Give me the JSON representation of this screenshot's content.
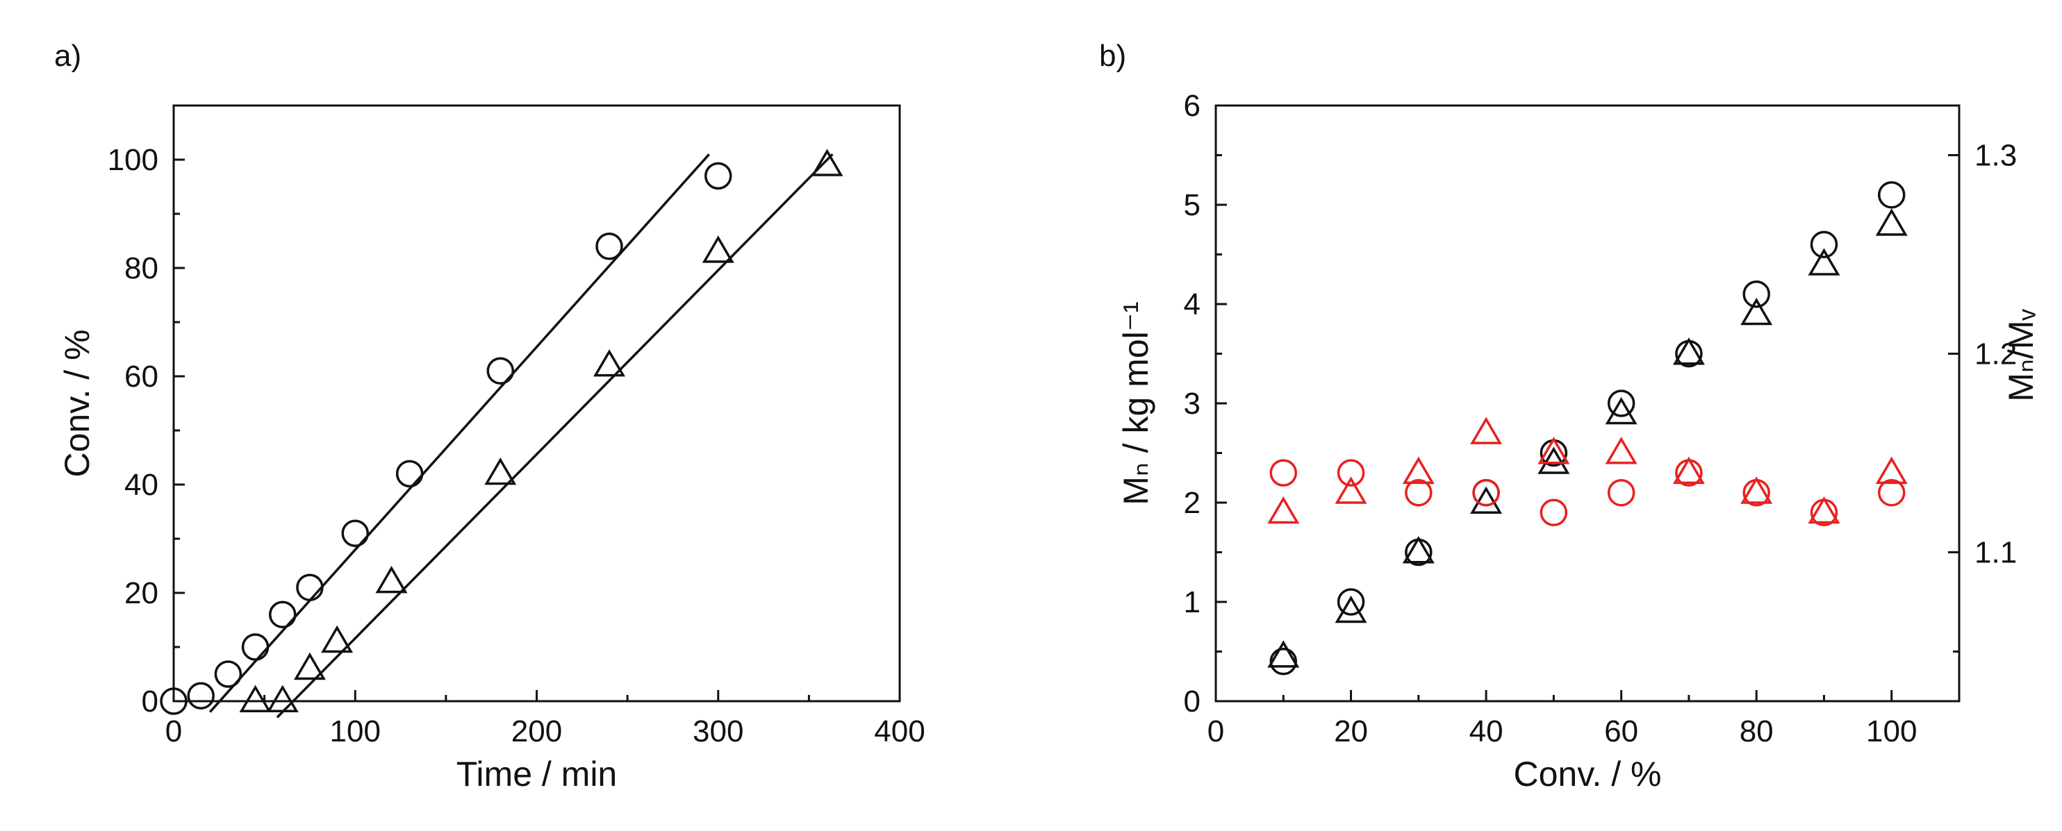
{
  "panels": {
    "a": {
      "label": "a)"
    },
    "b": {
      "label": "b)"
    }
  },
  "colors": {
    "black": "#111111",
    "red": "#e8201f"
  },
  "chart_data": [
    {
      "id": "a",
      "type": "scatter",
      "xlabel": "Time / min",
      "ylabel": "Conv. / %",
      "xlim": [
        0,
        400
      ],
      "ylim": [
        0,
        110
      ],
      "xticks": [
        "0",
        "100",
        "200",
        "300",
        "400"
      ],
      "yticks": [
        "0",
        "20",
        "40",
        "60",
        "80",
        "100"
      ],
      "grid": false,
      "series": [
        {
          "marker": "circle",
          "color": "#111111",
          "x": [
            0,
            15,
            30,
            45,
            60,
            75,
            100,
            130,
            180,
            240,
            300
          ],
          "y": [
            0,
            1,
            5,
            10,
            16,
            21,
            31,
            42,
            61,
            84,
            97
          ]
        },
        {
          "marker": "triangle",
          "color": "#111111",
          "x": [
            45,
            60,
            75,
            90,
            120,
            180,
            240,
            300,
            360
          ],
          "y": [
            0,
            0,
            6,
            11,
            22,
            42,
            62,
            83,
            99
          ]
        }
      ],
      "fit_lines": [
        {
          "color": "#111111",
          "x": [
            20,
            295
          ],
          "y": [
            -2,
            101
          ]
        },
        {
          "color": "#111111",
          "x": [
            57,
            363
          ],
          "y": [
            -3,
            101
          ]
        }
      ]
    },
    {
      "id": "b",
      "type": "scatter",
      "xlabel": "Conv. / %",
      "ylabel": "Mₙ / kg mol⁻¹",
      "y2label": "Mₙ/Mᵥ",
      "xlim": [
        0,
        110
      ],
      "ylim": [
        0,
        6
      ],
      "y2lim": [
        1.025,
        1.325
      ],
      "xticks": [
        "0",
        "20",
        "40",
        "60",
        "80",
        "100"
      ],
      "yticks": [
        "0",
        "1",
        "2",
        "3",
        "4",
        "5",
        "6"
      ],
      "y2ticks": [
        "1.1",
        "1.2",
        "1.3"
      ],
      "grid": false,
      "series": [
        {
          "marker": "circle",
          "color": "#111111",
          "axis": "left",
          "x": [
            10,
            20,
            30,
            40,
            50,
            60,
            70,
            80,
            90,
            100
          ],
          "y": [
            0.4,
            1.0,
            1.5,
            2.1,
            2.5,
            3.0,
            3.5,
            4.1,
            4.6,
            5.1
          ]
        },
        {
          "marker": "triangle",
          "color": "#111111",
          "axis": "left",
          "x": [
            10,
            20,
            30,
            40,
            50,
            60,
            70,
            80,
            90,
            100
          ],
          "y": [
            0.45,
            0.9,
            1.5,
            2.0,
            2.4,
            2.9,
            3.5,
            3.9,
            4.4,
            4.8
          ]
        },
        {
          "marker": "circle",
          "color": "#e8201f",
          "axis": "right",
          "x": [
            10,
            20,
            30,
            40,
            50,
            60,
            70,
            80,
            90,
            100
          ],
          "y": [
            1.14,
            1.14,
            1.13,
            1.13,
            1.12,
            1.13,
            1.14,
            1.13,
            1.12,
            1.13
          ]
        },
        {
          "marker": "triangle",
          "color": "#e8201f",
          "axis": "right",
          "x": [
            10,
            20,
            30,
            40,
            50,
            60,
            70,
            80,
            90,
            100
          ],
          "y": [
            1.12,
            1.13,
            1.14,
            1.16,
            1.15,
            1.15,
            1.14,
            1.13,
            1.12,
            1.14
          ]
        }
      ]
    }
  ]
}
